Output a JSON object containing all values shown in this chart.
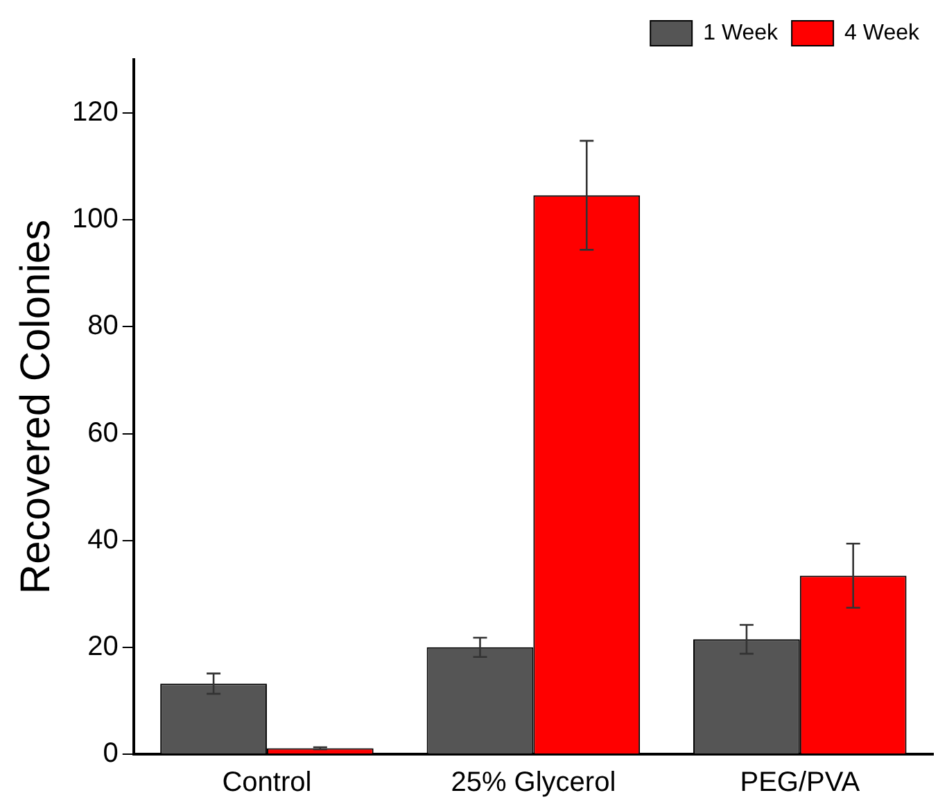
{
  "chart_data": {
    "type": "bar",
    "ylabel": "Recovered Colonies",
    "categories": [
      "Control",
      "25% Glycerol",
      "PEG/PVA"
    ],
    "series": [
      {
        "name": "1 Week",
        "color": "#555555",
        "values": [
          13.2,
          20.0,
          21.5
        ],
        "errors": [
          1.9,
          1.8,
          2.7
        ]
      },
      {
        "name": "4 Week",
        "color": "#ff0000",
        "values": [
          1.1,
          104.6,
          33.4
        ],
        "errors": [
          0.2,
          10.2,
          6
        ]
      }
    ],
    "ylim": [
      0,
      130
    ],
    "yticks": [
      0,
      20,
      40,
      60,
      80,
      100,
      120
    ],
    "grid": false,
    "legend": "top right"
  }
}
